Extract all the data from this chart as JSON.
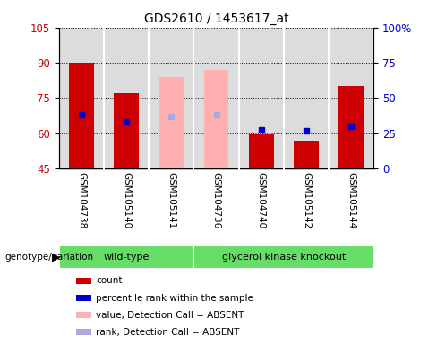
{
  "title": "GDS2610 / 1453617_at",
  "samples": [
    "GSM104738",
    "GSM105140",
    "GSM105141",
    "GSM104736",
    "GSM104740",
    "GSM105142",
    "GSM105144"
  ],
  "ylim": [
    45,
    105
  ],
  "yticks": [
    45,
    60,
    75,
    90,
    105
  ],
  "ytick_labels": [
    "45",
    "60",
    "75",
    "90",
    "105"
  ],
  "y2lim": [
    0,
    100
  ],
  "y2ticks": [
    0,
    25,
    50,
    75,
    100
  ],
  "y2tick_labels": [
    "0",
    "25",
    "50",
    "75",
    "100%"
  ],
  "bar_bottom": 45,
  "red_bars": {
    "GSM104738": 90,
    "GSM105140": 77,
    "GSM105141": null,
    "GSM104736": null,
    "GSM104740": 59.5,
    "GSM105142": 57,
    "GSM105144": 80
  },
  "pink_bars": {
    "GSM104738": null,
    "GSM105140": null,
    "GSM105141": 84,
    "GSM104736": 87,
    "GSM104740": null,
    "GSM105142": null,
    "GSM105144": null
  },
  "blue_dots": {
    "GSM104738": 68,
    "GSM105140": 65,
    "GSM105141": null,
    "GSM104736": null,
    "GSM104740": 61.5,
    "GSM105142": 61,
    "GSM105144": 63
  },
  "lightblue_dots": {
    "GSM104738": null,
    "GSM105140": null,
    "GSM105141": 67,
    "GSM104736": 68,
    "GSM104740": null,
    "GSM105142": null,
    "GSM105144": null
  },
  "bar_width": 0.55,
  "red_color": "#CC0000",
  "pink_color": "#FFB0B0",
  "blue_color": "#0000CC",
  "lightblue_color": "#AAAADD",
  "ylabel_color": "#CC0000",
  "y2label_color": "#0000CC",
  "bg_color": "#DCDCDC",
  "green_color": "#66DD66",
  "legend_labels": [
    "count",
    "percentile rank within the sample",
    "value, Detection Call = ABSENT",
    "rank, Detection Call = ABSENT"
  ],
  "legend_colors": [
    "#CC0000",
    "#0000CC",
    "#FFB0B0",
    "#AAAADD"
  ],
  "wt_samples": 3,
  "gk_samples": 4
}
